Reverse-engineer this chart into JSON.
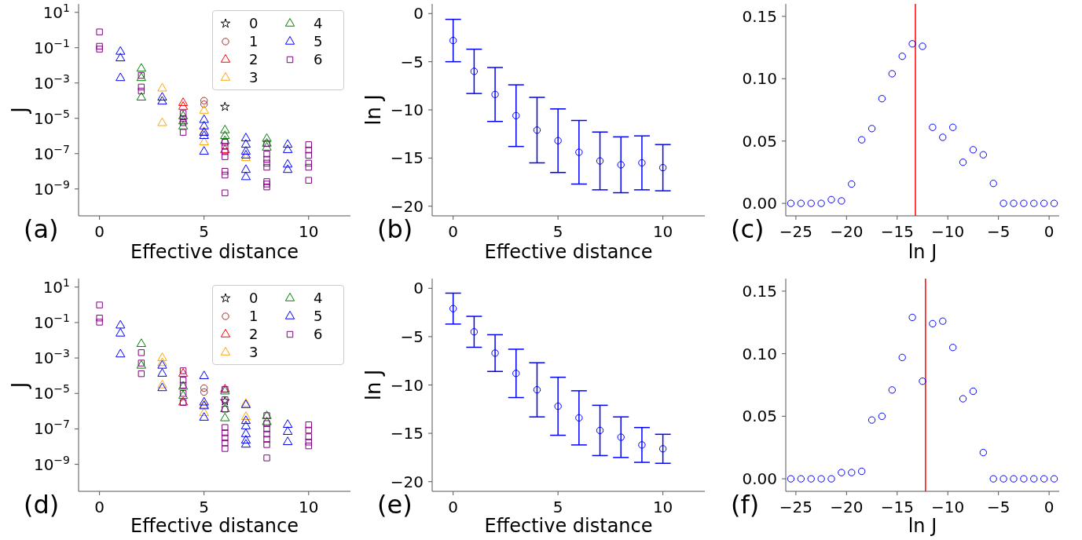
{
  "chart_data": [
    {
      "type": "scatter",
      "xlabel": "Effective distance",
      "ylabel": "J",
      "annotations": [
        "(a)"
      ],
      "log": "y",
      "legend": "top right",
      "xlim": [
        -1,
        12
      ],
      "xticks": [
        0,
        5,
        10
      ],
      "ylim": [
        3e-11,
        30
      ],
      "yticks": [
        {
          "value": 10,
          "label": "10$^{1}$"
        },
        {
          "value": 0.1,
          "label": "10$^{−1}$"
        },
        {
          "value": 0.001,
          "label": "10$^{−3}$"
        },
        {
          "value": 1e-05,
          "label": "10$^{−5}$"
        },
        {
          "value": 1e-07,
          "label": "10$^{−7}$"
        },
        {
          "value": 1e-09,
          "label": "10$^{−9}$"
        }
      ],
      "series": [
        {
          "name": "0",
          "color": "#000000",
          "marker": "star",
          "x": [
            6
          ],
          "values": [
            4.5e-05
          ]
        },
        {
          "name": "1",
          "color": "#a52a2a",
          "marker": "circle",
          "x": [
            5,
            5
          ],
          "values": [
            0.0001,
            6.3e-05
          ]
        },
        {
          "name": "2",
          "color": "#ff0000",
          "marker": "triangle",
          "x": [
            4,
            4,
            6
          ],
          "values": [
            7.4e-05,
            4.5e-05,
            1.6e-07
          ]
        },
        {
          "name": "3",
          "color": "#ffa500",
          "marker": "triangle",
          "x": [
            3,
            3,
            5,
            5,
            5,
            7
          ],
          "values": [
            0.00049,
            5.4e-06,
            2.7e-05,
            1.7e-06,
            4.4e-07,
            5.6e-08
          ]
        },
        {
          "name": "4",
          "color": "#008000",
          "marker": "triangle",
          "x": [
            2,
            2,
            2,
            4,
            4,
            4,
            6,
            6,
            6,
            8,
            8,
            8
          ],
          "values": [
            0.0065,
            0.0019,
            0.00015,
            1.3e-05,
            6.8e-06,
            3.5e-06,
            2.1e-06,
            1e-06,
            5.2e-07,
            6.9e-07,
            3.7e-07,
            2.2e-07
          ]
        },
        {
          "name": "5",
          "color": "#0000ff",
          "marker": "triangle",
          "x": [
            1,
            1,
            1,
            3,
            3,
            5,
            5,
            5,
            5,
            5,
            7,
            7,
            7,
            7,
            7,
            7,
            9,
            9,
            9,
            9
          ],
          "values": [
            0.059,
            0.025,
            0.0019,
            0.00015,
            8.9e-05,
            8.1e-06,
            3.5e-06,
            1.5e-06,
            1e-06,
            1.3e-07,
            7.4e-07,
            3.2e-07,
            1.3e-07,
            7.9e-08,
            1.2e-08,
            4.7e-09,
            3.2e-07,
            1.6e-07,
            2.4e-08,
            1.2e-08
          ]
        },
        {
          "name": "6",
          "color": "#800080",
          "marker": "square",
          "x": [
            0,
            0,
            0,
            2,
            2,
            2,
            4,
            4,
            4,
            4,
            6,
            6,
            6,
            6,
            6,
            6,
            6,
            8,
            8,
            8,
            8,
            8,
            8,
            8,
            8,
            10,
            10,
            10,
            10,
            10,
            10
          ],
          "values": [
            0.78,
            0.12,
            0.083,
            0.0027,
            0.00059,
            0.00035,
            1.9e-05,
            9.6e-06,
            5.7e-06,
            1.6e-06,
            4.4e-07,
            2.6e-07,
            1.3e-07,
            6.7e-08,
            1e-08,
            6.1e-09,
            6e-10,
            3.7e-07,
            9.5e-08,
            4.8e-08,
            2.9e-08,
            1.7e-08,
            2.6e-09,
            1.9e-09,
            1.3e-09,
            3.2e-07,
            1.6e-07,
            8e-08,
            2.9e-08,
            1.7e-08,
            3.1e-09
          ]
        }
      ]
    },
    {
      "type": "scatter",
      "xlabel": "Effective distance",
      "ylabel": "ln J",
      "annotations": [
        "(b)"
      ],
      "xlim": [
        -1,
        12
      ],
      "xticks": [
        0,
        5,
        10
      ],
      "ylim": [
        -21,
        1
      ],
      "yticks": [
        0,
        {
          "value": -5,
          "label": "−5"
        },
        {
          "value": -10,
          "label": "−10"
        },
        {
          "value": -15,
          "label": "−15"
        },
        {
          "value": -20,
          "label": "−20"
        }
      ],
      "x": [
        0,
        1,
        2,
        3,
        4,
        5,
        6,
        7,
        8,
        9,
        10
      ],
      "series": [
        {
          "color": "#0000ff",
          "marker": "circle",
          "values": [
            -2.8,
            -6.0,
            -8.4,
            -10.6,
            -12.1,
            -13.2,
            -14.4,
            -15.3,
            -15.7,
            -15.5,
            -16.0
          ],
          "errors": [
            2.2,
            2.3,
            2.8,
            3.2,
            3.4,
            3.3,
            3.3,
            3.0,
            2.9,
            2.8,
            2.4
          ]
        }
      ]
    },
    {
      "type": "scatter",
      "xlabel": "ln J",
      "annotations": [
        "(c)"
      ],
      "xlim": [
        -26,
        1
      ],
      "xticks": [
        {
          "value": -25,
          "label": "−25"
        },
        {
          "value": -20,
          "label": "−20"
        },
        {
          "value": -15,
          "label": "−15"
        },
        {
          "value": -10,
          "label": "−10"
        },
        {
          "value": -5,
          "label": "−5"
        },
        0
      ],
      "ylim": [
        -0.01,
        0.16
      ],
      "yticks": [
        {
          "value": 0,
          "label": "0.00"
        },
        0.05,
        {
          "value": 0.1,
          "label": "0.10"
        },
        0.15
      ],
      "x": [
        -25.5,
        -24.5,
        -23.5,
        -22.5,
        -21.5,
        -20.5,
        -19.5,
        -18.5,
        -17.5,
        -16.5,
        -15.5,
        -14.5,
        -13.5,
        -12.5,
        -11.5,
        -10.5,
        -9.5,
        -8.5,
        -7.5,
        -6.5,
        -5.5,
        -4.5,
        -3.5,
        -2.5,
        -1.5,
        -0.5,
        0.5
      ],
      "series": [
        {
          "color": "#0000ff",
          "marker": "circle",
          "values": [
            0,
            0,
            0,
            0,
            0.003,
            0.002,
            0.0155,
            0.051,
            0.06,
            0.084,
            0.104,
            0.118,
            0.128,
            0.126,
            0.061,
            0.053,
            0.061,
            0.033,
            0.043,
            0.039,
            0.016,
            0,
            0,
            0,
            0,
            0,
            0
          ]
        }
      ],
      "ref_lines": [
        {
          "axis": "x",
          "value": -13.2,
          "color": "#ff0000"
        }
      ]
    },
    {
      "type": "scatter",
      "xlabel": "Effective distance",
      "ylabel": "J",
      "annotations": [
        "(d)"
      ],
      "log": "y",
      "legend": "top right",
      "xlim": [
        -1,
        12
      ],
      "xticks": [
        0,
        5,
        10
      ],
      "ylim": [
        3e-11,
        30
      ],
      "yticks": [
        {
          "value": 10,
          "label": "10$^{1}$"
        },
        {
          "value": 0.1,
          "label": "10$^{−1}$"
        },
        {
          "value": 0.001,
          "label": "10$^{−3}$"
        },
        {
          "value": 1e-05,
          "label": "10$^{−5}$"
        },
        {
          "value": 1e-07,
          "label": "10$^{−7}$"
        },
        {
          "value": 1e-09,
          "label": "10$^{−9}$"
        }
      ],
      "series": [
        {
          "name": "0",
          "color": "#000000",
          "marker": "star",
          "x": [
            6
          ],
          "values": [
            3.7e-06
          ]
        },
        {
          "name": "1",
          "color": "#a52a2a",
          "marker": "circle",
          "x": [
            5,
            5
          ],
          "values": [
            2e-05,
            1.2e-05
          ]
        },
        {
          "name": "2",
          "color": "#ff0000",
          "marker": "triangle",
          "x": [
            4,
            4,
            6
          ],
          "values": [
            0.00013,
            3.1e-06,
            1.7e-05
          ]
        },
        {
          "name": "3",
          "color": "#ffa500",
          "marker": "triangle",
          "x": [
            3,
            3,
            3,
            5,
            5,
            7,
            7
          ],
          "values": [
            0.001,
            0.00052,
            2.9e-05,
            2.2e-06,
            7.9e-07,
            2.6e-06,
            4.7e-07
          ]
        },
        {
          "name": "4",
          "color": "#008000",
          "marker": "triangle",
          "x": [
            2,
            2,
            4,
            4,
            6,
            6,
            6,
            8,
            8
          ],
          "values": [
            0.0062,
            0.00037,
            2.4e-05,
            7.3e-06,
            1.3e-05,
            1.3e-06,
            4e-07,
            5.3e-07,
            2.4e-07
          ]
        },
        {
          "name": "5",
          "color": "#0000ff",
          "marker": "triangle",
          "x": [
            1,
            1,
            1,
            3,
            3,
            3,
            5,
            5,
            5,
            5,
            7,
            7,
            7,
            7,
            7,
            7,
            9,
            9,
            9
          ],
          "values": [
            0.068,
            0.024,
            0.0016,
            0.00037,
            0.00013,
            2e-05,
            9.5e-05,
            3.1e-06,
            1.9e-06,
            4.3e-07,
            2.2e-06,
            2.8e-07,
            1.4e-07,
            5.1e-08,
            2.2e-08,
            1.3e-08,
            1.7e-07,
            6.8e-08,
            1.8e-08
          ]
        },
        {
          "name": "6",
          "color": "#800080",
          "marker": "square",
          "x": [
            0,
            0,
            0,
            2,
            2,
            2,
            4,
            4,
            4,
            4,
            4,
            6,
            6,
            6,
            6,
            6,
            6,
            6,
            6,
            8,
            8,
            8,
            8,
            8,
            8,
            8,
            10,
            10,
            10,
            10,
            10
          ],
          "values": [
            0.98,
            0.18,
            0.105,
            0.002,
            0.00052,
            0.00013,
            0.00019,
            5.7e-05,
            2.9e-05,
            1e-05,
            3.1e-06,
            1.7e-05,
            4.4e-06,
            1.3e-06,
            1.2e-07,
            6e-08,
            3.1e-08,
            1.6e-08,
            7.8e-09,
            5.6e-07,
            2e-07,
            1e-07,
            5.1e-08,
            2.6e-08,
            1.3e-08,
            2.3e-09,
            1.7e-07,
            8.5e-08,
            3.6e-08,
            1.8e-08,
            1.1e-08
          ]
        }
      ]
    },
    {
      "type": "scatter",
      "xlabel": "Effective distance",
      "ylabel": "ln J",
      "annotations": [
        "(e)"
      ],
      "xlim": [
        -1,
        12
      ],
      "xticks": [
        0,
        5,
        10
      ],
      "ylim": [
        -21,
        1
      ],
      "yticks": [
        0,
        {
          "value": -5,
          "label": "−5"
        },
        {
          "value": -10,
          "label": "−10"
        },
        {
          "value": -15,
          "label": "−15"
        },
        {
          "value": -20,
          "label": "−20"
        }
      ],
      "x": [
        0,
        1,
        2,
        3,
        4,
        5,
        6,
        7,
        8,
        9,
        10
      ],
      "series": [
        {
          "color": "#0000ff",
          "marker": "circle",
          "values": [
            -2.1,
            -4.5,
            -6.7,
            -8.8,
            -10.5,
            -12.2,
            -13.4,
            -14.7,
            -15.4,
            -16.2,
            -16.6
          ],
          "errors": [
            1.6,
            1.6,
            1.9,
            2.5,
            2.8,
            3.0,
            2.8,
            2.6,
            2.1,
            1.8,
            1.5
          ]
        }
      ]
    },
    {
      "type": "scatter",
      "xlabel": "ln J",
      "annotations": [
        "(f)"
      ],
      "xlim": [
        -26,
        1
      ],
      "xticks": [
        {
          "value": -25,
          "label": "−25"
        },
        {
          "value": -20,
          "label": "−20"
        },
        {
          "value": -15,
          "label": "−15"
        },
        {
          "value": -10,
          "label": "−10"
        },
        {
          "value": -5,
          "label": "−5"
        },
        0
      ],
      "ylim": [
        -0.01,
        0.16
      ],
      "yticks": [
        {
          "value": 0,
          "label": "0.00"
        },
        0.05,
        {
          "value": 0.1,
          "label": "0.10"
        },
        0.15
      ],
      "x": [
        -25.5,
        -24.5,
        -23.5,
        -22.5,
        -21.5,
        -20.5,
        -19.5,
        -18.5,
        -17.5,
        -16.5,
        -15.5,
        -14.5,
        -13.5,
        -12.5,
        -11.5,
        -10.5,
        -9.5,
        -8.5,
        -7.5,
        -6.5,
        -5.5,
        -4.5,
        -3.5,
        -2.5,
        -1.5,
        -0.5,
        0.5
      ],
      "series": [
        {
          "color": "#0000ff",
          "marker": "circle",
          "values": [
            0,
            0,
            0,
            0,
            0,
            0.005,
            0.005,
            0.006,
            0.047,
            0.05,
            0.071,
            0.097,
            0.129,
            0.078,
            0.124,
            0.126,
            0.105,
            0.064,
            0.07,
            0.021,
            0,
            0,
            0,
            0,
            0,
            0,
            0
          ]
        }
      ],
      "ref_lines": [
        {
          "axis": "x",
          "value": -12.2,
          "color": "#ff0000"
        }
      ]
    }
  ]
}
